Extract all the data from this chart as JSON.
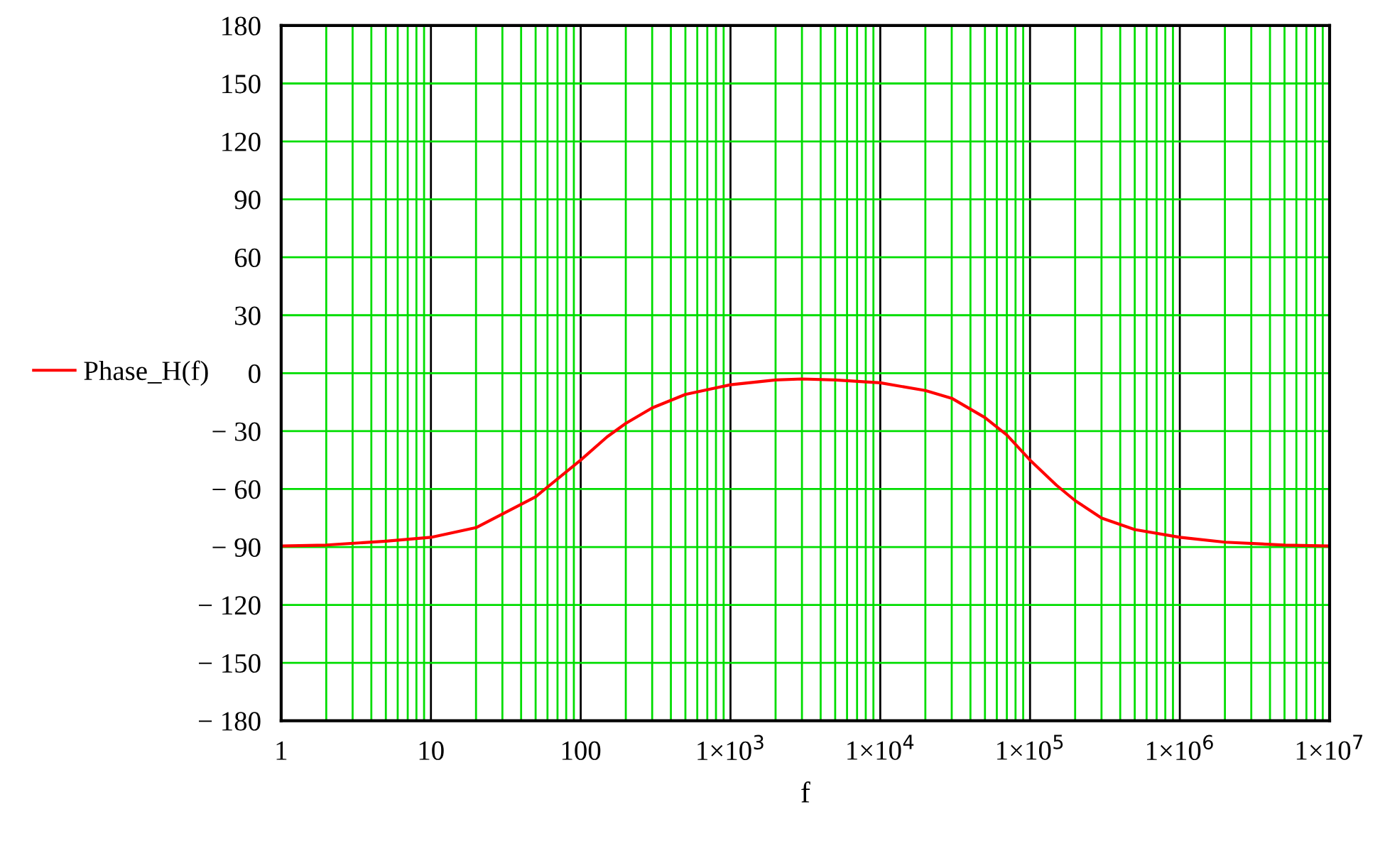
{
  "chart_data": {
    "type": "line",
    "xlabel": "f",
    "log": "x",
    "grid": true,
    "legend": "left",
    "marker": "none",
    "line_style": "solid",
    "xlim": [
      1,
      10000000
    ],
    "ylim": [
      -180,
      180
    ],
    "xticks": [
      1,
      10,
      100,
      {
        "value": 1000,
        "label": "1×10$^{3}$"
      },
      {
        "value": 10000,
        "label": "1×10$^{4}$"
      },
      {
        "value": 100000,
        "label": "1×10$^{5}$"
      },
      {
        "value": 1000000,
        "label": "1×10$^{6}$"
      },
      {
        "value": 10000000,
        "label": "1×10$^{7}$"
      }
    ],
    "yticks": [
      180,
      150,
      120,
      90,
      60,
      30,
      0,
      {
        "value": -30,
        "label": "− 30"
      },
      {
        "value": -60,
        "label": "− 60"
      },
      {
        "value": -90,
        "label": "− 90"
      },
      {
        "value": -120,
        "label": "− 120"
      },
      {
        "value": -150,
        "label": "− 150"
      },
      {
        "value": -180,
        "label": "− 180"
      }
    ],
    "series": [
      {
        "name": "Phase_H(f)",
        "color": "#ff0000",
        "x": [
          1,
          2,
          5,
          10,
          20,
          50,
          100,
          150,
          200,
          300,
          500,
          1000,
          2000,
          3000,
          5000,
          10000,
          20000,
          30000,
          50000,
          70000,
          100000,
          150000,
          200000,
          300000,
          500000,
          1000000,
          2000000,
          5000000,
          10000000
        ],
        "values": [
          -89.5,
          -89,
          -87,
          -85,
          -80,
          -64,
          -45,
          -33,
          -26,
          -18,
          -11,
          -6,
          -3.5,
          -3,
          -3.5,
          -5,
          -9,
          -13,
          -23,
          -32,
          -45,
          -58,
          -66,
          -75,
          -81,
          -85,
          -87.5,
          -89,
          -89.5
        ]
      }
    ]
  }
}
